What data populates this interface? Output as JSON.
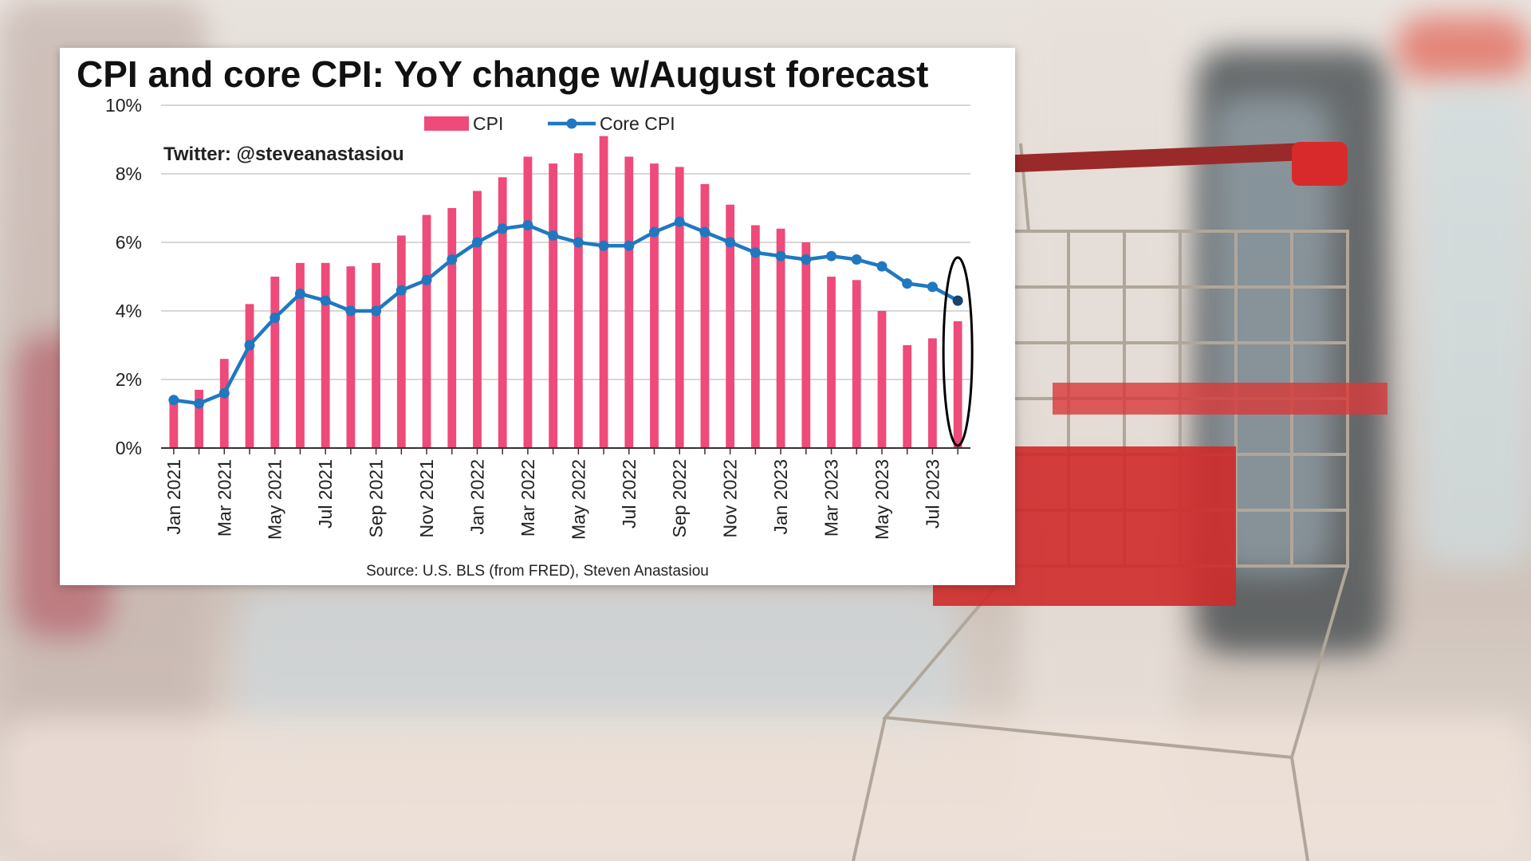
{
  "chart_data": {
    "type": "bar+line",
    "title": "CPI and core CPI: YoY change w/August forecast",
    "watermark": "Twitter: @steveanastasiou",
    "source": "Source: U.S. BLS (from FRED), Steven Anastasiou",
    "ylim": [
      0,
      10
    ],
    "yticks": [
      "0%",
      "2%",
      "4%",
      "6%",
      "8%",
      "10%"
    ],
    "grid": "horizontal",
    "legend_placement": "top-center",
    "categories": [
      "Jan 2021",
      "Feb 2021",
      "Mar 2021",
      "Apr 2021",
      "May 2021",
      "Jun 2021",
      "Jul 2021",
      "Aug 2021",
      "Sep 2021",
      "Oct 2021",
      "Nov 2021",
      "Dec 2021",
      "Jan 2022",
      "Feb 2022",
      "Mar 2022",
      "Apr 2022",
      "May 2022",
      "Jun 2022",
      "Jul 2022",
      "Aug 2022",
      "Sep 2022",
      "Oct 2022",
      "Nov 2022",
      "Dec 2022",
      "Jan 2023",
      "Feb 2023",
      "Mar 2023",
      "Apr 2023",
      "May 2023",
      "Jun 2023",
      "Jul 2023",
      "Aug 2023"
    ],
    "xtick_labels": [
      "Jan 2021",
      "Mar 2021",
      "May 2021",
      "Jul 2021",
      "Sep 2021",
      "Nov 2021",
      "Jan 2022",
      "Mar 2022",
      "May 2022",
      "Jul 2022",
      "Sep 2022",
      "Nov 2022",
      "Jan 2023",
      "Mar 2023",
      "May 2023",
      "Jul 2023"
    ],
    "series": [
      {
        "name": "CPI",
        "kind": "bar",
        "color": "#ee4a7a",
        "values": [
          1.4,
          1.7,
          2.6,
          4.2,
          5.0,
          5.4,
          5.4,
          5.3,
          5.4,
          6.2,
          6.8,
          7.0,
          7.5,
          7.9,
          8.5,
          8.3,
          8.6,
          9.1,
          8.5,
          8.3,
          8.2,
          7.7,
          7.1,
          6.5,
          6.4,
          6.0,
          5.0,
          4.9,
          4.0,
          3.0,
          3.2,
          3.7
        ]
      },
      {
        "name": "Core CPI",
        "kind": "line",
        "color": "#1f78c1",
        "values": [
          1.4,
          1.3,
          1.6,
          3.0,
          3.8,
          4.5,
          4.3,
          4.0,
          4.0,
          4.6,
          4.9,
          5.5,
          6.0,
          6.4,
          6.5,
          6.2,
          6.0,
          5.9,
          5.9,
          6.3,
          6.6,
          6.3,
          6.0,
          5.7,
          5.6,
          5.5,
          5.6,
          5.5,
          5.3,
          4.8,
          4.7,
          4.3
        ]
      }
    ],
    "highlight": {
      "category": "Aug 2023",
      "shape": "ellipse",
      "color": "#000000"
    }
  },
  "colors": {
    "cpi": "#ee4a7a",
    "core": "#1f78c1",
    "grid": "#bfbfbf",
    "axis": "#333333"
  }
}
